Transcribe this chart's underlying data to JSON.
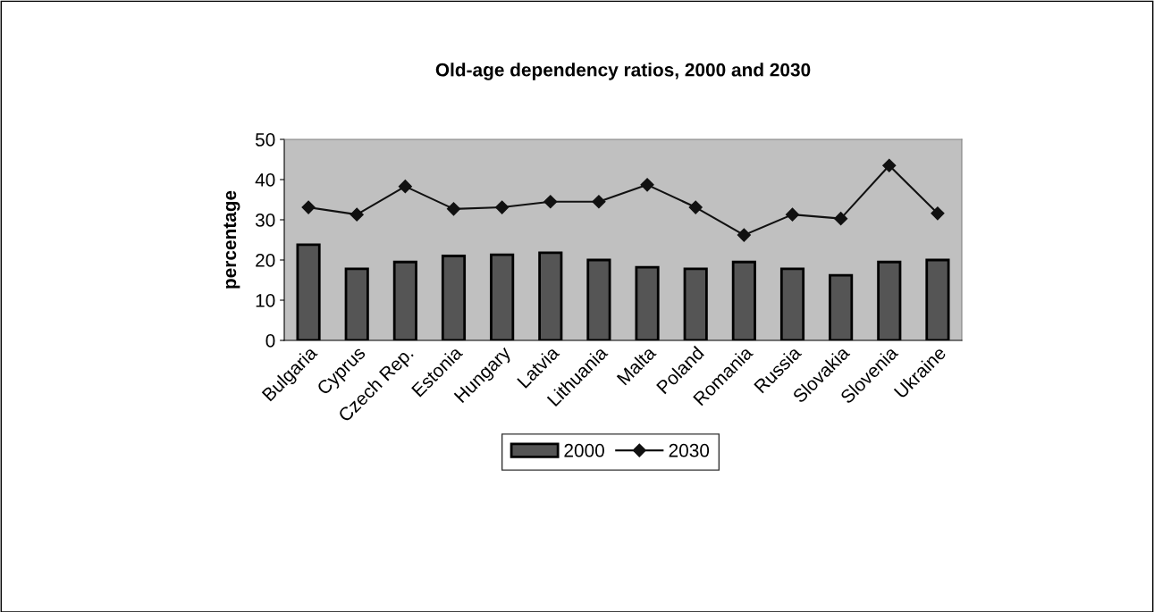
{
  "chart_data": {
    "type": "bar",
    "title": "Old-age dependency ratios, 2000 and 2030",
    "ylabel": "percentage",
    "categories": [
      "Bulgaria",
      "Cyprus",
      "Czech Rep.",
      "Estonia",
      "Hungary",
      "Latvia",
      "Lithuania",
      "Malta",
      "Poland",
      "Romania",
      "Russia",
      "Slovakia",
      "Slovenia",
      "Ukraine"
    ],
    "series": [
      {
        "name": "2000",
        "color": "#555555",
        "values": [
          23.8,
          17.8,
          19.5,
          21.0,
          21.3,
          21.8,
          20.0,
          18.2,
          17.8,
          19.5,
          17.8,
          16.2,
          19.5,
          20.0
        ]
      },
      {
        "name": "2030",
        "type": "line",
        "color": "#111111",
        "marker": "diamond",
        "values": [
          33.1,
          31.3,
          38.3,
          32.7,
          33.1,
          34.5,
          34.5,
          38.7,
          33.1,
          26.2,
          31.3,
          30.3,
          43.5,
          31.6
        ]
      }
    ],
    "ylim": [
      0,
      50
    ],
    "yticks": [
      0,
      10,
      20,
      30,
      40,
      50
    ],
    "grid": false,
    "legend": "bottom"
  }
}
